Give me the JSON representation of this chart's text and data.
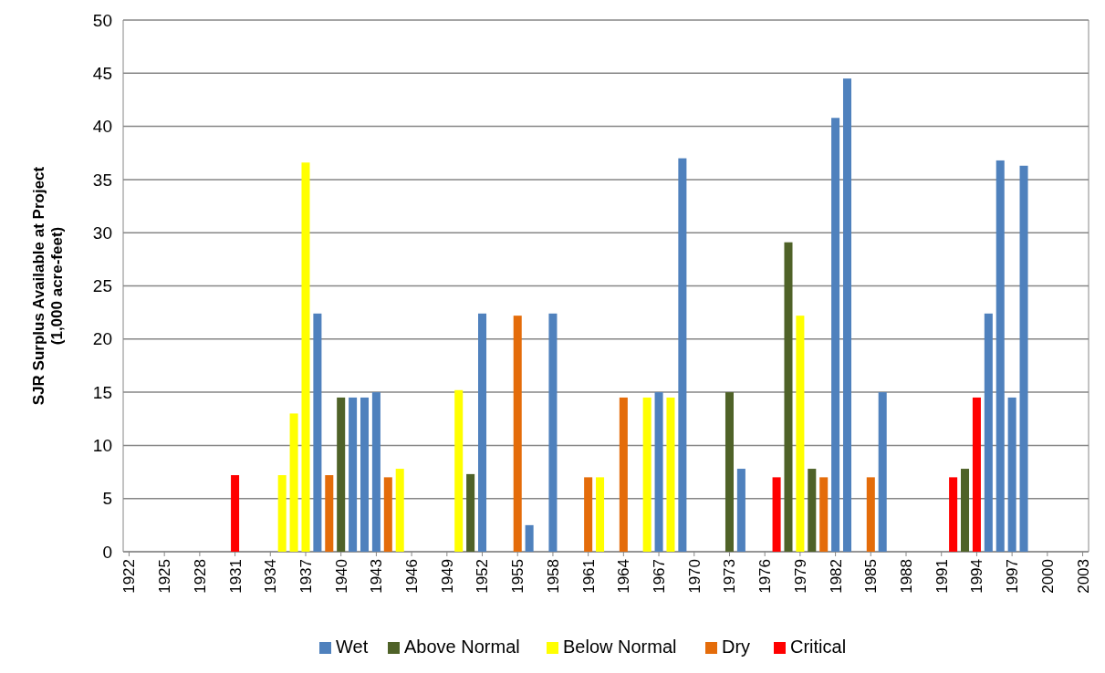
{
  "chart_data": {
    "type": "bar",
    "ylabel": "SJR Surplus Available at Project\n(1,000 acre-feet)",
    "xlim": [
      1921.5,
      2003.5
    ],
    "xticks": [
      1922,
      1925,
      1928,
      1931,
      1934,
      1937,
      1940,
      1943,
      1946,
      1949,
      1952,
      1955,
      1958,
      1961,
      1964,
      1967,
      1970,
      1973,
      1976,
      1979,
      1982,
      1985,
      1988,
      1991,
      1994,
      1997,
      2000,
      2003
    ],
    "ylim": [
      0,
      50
    ],
    "yticks": [
      0,
      5,
      10,
      15,
      20,
      25,
      30,
      35,
      40,
      45,
      50
    ],
    "grid": "y",
    "legend": "bottom",
    "series": [
      {
        "name": "Wet",
        "color": "#4f81bd",
        "x": [
          1938,
          1941,
          1942,
          1943,
          1952,
          1956,
          1958,
          1967,
          1969,
          1974,
          1982,
          1983,
          1986,
          1995,
          1996,
          1997,
          1998
        ],
        "values": [
          22.4,
          14.5,
          14.5,
          15,
          22.4,
          2.5,
          22.4,
          15,
          37,
          7.8,
          40.8,
          44.5,
          15,
          22.4,
          36.8,
          14.5,
          36.3
        ]
      },
      {
        "name": "Above Normal",
        "color": "#4f6228",
        "x": [
          1940,
          1951,
          1973,
          1978,
          1980,
          1993
        ],
        "values": [
          14.5,
          7.3,
          15,
          29.1,
          7.8,
          7.8
        ]
      },
      {
        "name": "Below Normal",
        "color": "#ffff00",
        "x": [
          1935,
          1936,
          1937,
          1945,
          1950,
          1962,
          1966,
          1968,
          1979
        ],
        "values": [
          7.2,
          13,
          36.6,
          7.8,
          15.2,
          7,
          14.5,
          14.5,
          22.2
        ]
      },
      {
        "name": "Dry",
        "color": "#e46c0a",
        "x": [
          1939,
          1944,
          1955,
          1961,
          1964,
          1981,
          1985
        ],
        "values": [
          7.2,
          7,
          22.2,
          7,
          14.5,
          7,
          7
        ]
      },
      {
        "name": "Critical",
        "color": "#ff0000",
        "x": [
          1931,
          1977,
          1992,
          1994
        ],
        "values": [
          7.2,
          7,
          7,
          14.5
        ]
      }
    ]
  }
}
